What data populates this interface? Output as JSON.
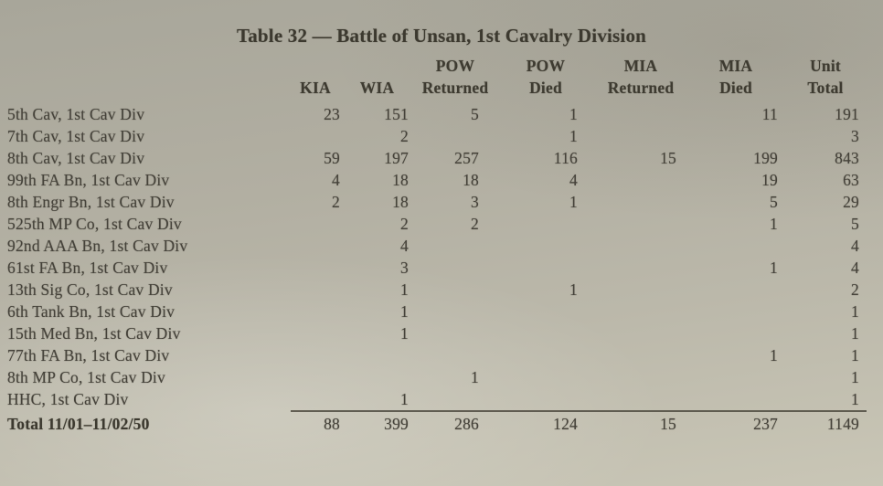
{
  "doc": {
    "title": "Table 32 — Battle of Unsan, 1st Cavalry Division"
  },
  "table": {
    "columns": [
      "KIA",
      "WIA",
      "POW\nReturned",
      "POW\nDied",
      "MIA\nReturned",
      "MIA\nDied",
      "Unit\nTotal"
    ],
    "rows": [
      {
        "label": "5th Cav, 1st Cav Div",
        "values": [
          "23",
          "151",
          "5",
          "1",
          "",
          "11",
          "191"
        ]
      },
      {
        "label": "7th Cav, 1st Cav Div",
        "values": [
          "",
          "2",
          "",
          "1",
          "",
          "",
          "3"
        ]
      },
      {
        "label": "8th Cav, 1st Cav Div",
        "values": [
          "59",
          "197",
          "257",
          "116",
          "15",
          "199",
          "843"
        ]
      },
      {
        "label": "99th FA Bn, 1st Cav Div",
        "values": [
          "4",
          "18",
          "18",
          "4",
          "",
          "19",
          "63"
        ]
      },
      {
        "label": "8th Engr Bn, 1st Cav Div",
        "values": [
          "2",
          "18",
          "3",
          "1",
          "",
          "5",
          "29"
        ]
      },
      {
        "label": "525th MP Co, 1st Cav Div",
        "values": [
          "",
          "2",
          "2",
          "",
          "",
          "1",
          "5"
        ]
      },
      {
        "label": "92nd AAA Bn, 1st Cav Div",
        "values": [
          "",
          "4",
          "",
          "",
          "",
          "",
          "4"
        ]
      },
      {
        "label": "61st FA Bn, 1st Cav Div",
        "values": [
          "",
          "3",
          "",
          "",
          "",
          "1",
          "4"
        ]
      },
      {
        "label": "13th Sig Co, 1st Cav Div",
        "values": [
          "",
          "1",
          "",
          "1",
          "",
          "",
          "2"
        ]
      },
      {
        "label": "6th Tank Bn, 1st Cav Div",
        "values": [
          "",
          "1",
          "",
          "",
          "",
          "",
          "1"
        ]
      },
      {
        "label": "15th Med Bn, 1st Cav Div",
        "values": [
          "",
          "1",
          "",
          "",
          "",
          "",
          "1"
        ]
      },
      {
        "label": "77th FA Bn, 1st Cav Div",
        "values": [
          "",
          "",
          "",
          "",
          "",
          "1",
          "1"
        ]
      },
      {
        "label": "8th MP Co, 1st Cav Div",
        "values": [
          "",
          "",
          "1",
          "",
          "",
          "",
          "1"
        ]
      },
      {
        "label": "HHC, 1st Cav Div",
        "values": [
          "",
          "1",
          "",
          "",
          "",
          "",
          "1"
        ]
      }
    ],
    "total": {
      "label": "Total 11/01–11/02/50",
      "values": [
        "88",
        "399",
        "286",
        "124",
        "15",
        "237",
        "1149"
      ]
    }
  }
}
